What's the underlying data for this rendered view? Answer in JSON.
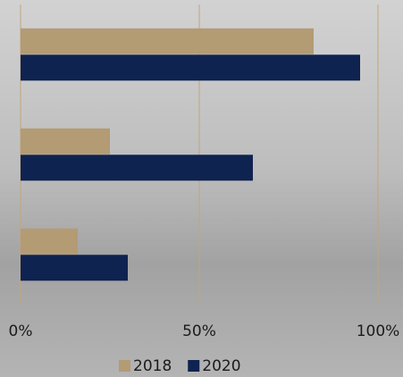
{
  "chart_data": {
    "type": "bar",
    "orientation": "horizontal",
    "categories": [
      null,
      null,
      null
    ],
    "series": [
      {
        "name": "2018",
        "color": "#b39b74",
        "values": [
          82,
          25,
          16
        ]
      },
      {
        "name": "2020",
        "color": "#0f2350",
        "values": [
          95,
          65,
          30
        ]
      }
    ],
    "xlim": [
      0,
      100
    ],
    "xticks": [
      {
        "value": 0,
        "label": "0%"
      },
      {
        "value": 50,
        "label": "50%"
      },
      {
        "value": 100,
        "label": "100%"
      }
    ],
    "grid": true,
    "grid_color": "#c2a57c",
    "legend": "bottom"
  }
}
